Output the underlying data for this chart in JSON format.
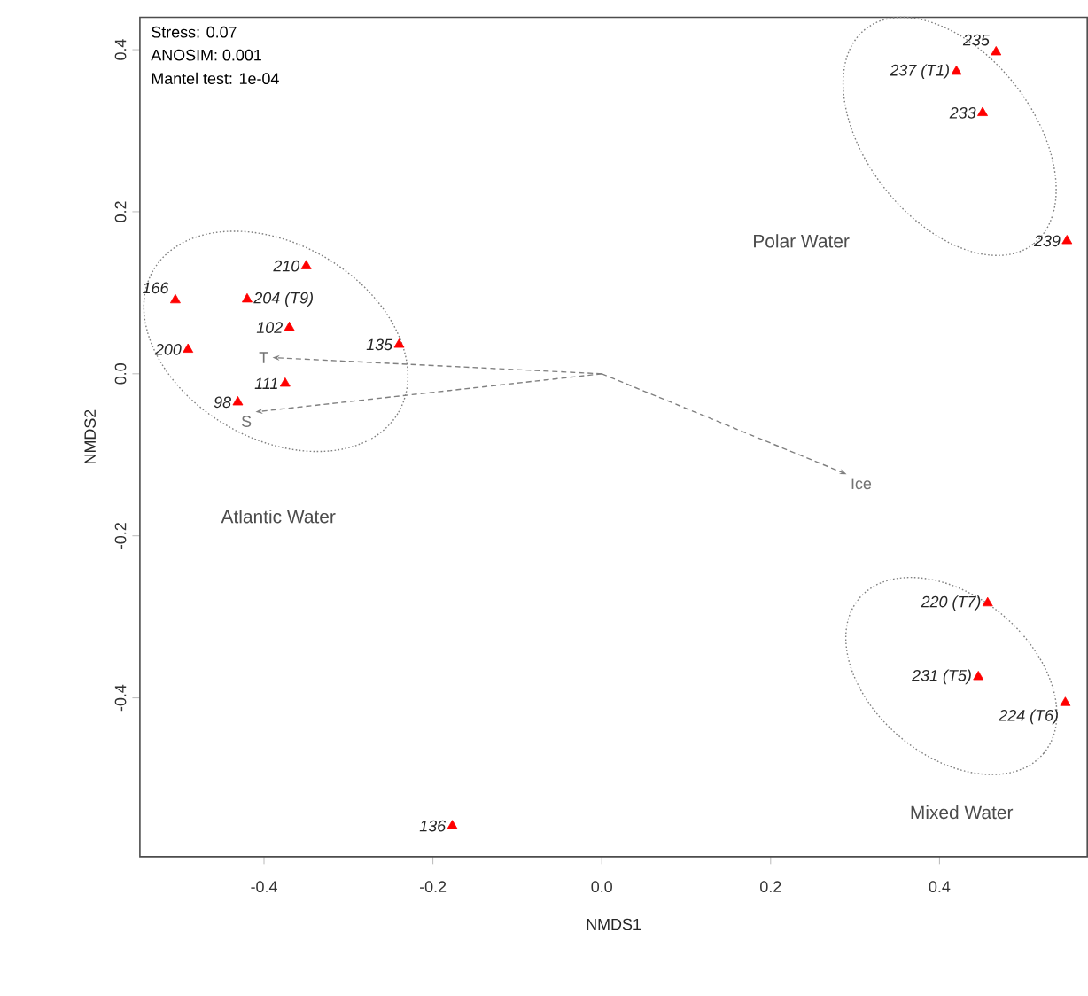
{
  "chart_data": {
    "type": "scatter",
    "xlabel": "NMDS1",
    "ylabel": "NMDS2",
    "xlim": [
      -0.547,
      0.575
    ],
    "ylim": [
      -0.596,
      0.44
    ],
    "xticks": [
      -0.4,
      -0.2,
      {
        "value": 0,
        "label": "0.0"
      },
      0.2,
      0.4
    ],
    "yticks": [
      -0.4,
      -0.2,
      {
        "value": 0,
        "label": "0.0"
      },
      0.2,
      0.4
    ],
    "series": [
      {
        "marker": "triangle",
        "color": "#ff0000",
        "x": [
          -0.431,
          -0.37,
          -0.375,
          -0.24,
          -0.177,
          -0.505,
          -0.49,
          -0.42,
          -0.35,
          0.457,
          0.549,
          0.446,
          0.451,
          0.467,
          0.42,
          0.551
        ],
        "values": [
          -0.035,
          0.057,
          -0.012,
          0.036,
          -0.558,
          0.091,
          0.03,
          0.092,
          0.133,
          -0.283,
          -0.406,
          -0.374,
          0.322,
          0.397,
          0.373,
          0.164
        ]
      }
    ],
    "annotations": [
      "Stress: 0.07",
      "ANOSIM: 0.001",
      "Mantel test: 1e-04",
      "Atlantic Water",
      "Polar Water",
      "Mixed Water",
      "T",
      "S",
      "Ice",
      {
        "text": "98",
        "x": -0.431,
        "y": -0.035
      },
      {
        "text": "102",
        "x": -0.37,
        "y": 0.057
      },
      {
        "text": "111",
        "x": -0.375,
        "y": -0.012
      },
      {
        "text": "135",
        "x": -0.24,
        "y": 0.036
      },
      {
        "text": "136",
        "x": -0.177,
        "y": -0.558
      },
      {
        "text": "166",
        "x": -0.505,
        "y": 0.091
      },
      {
        "text": "200",
        "x": -0.49,
        "y": 0.03
      },
      {
        "text": "204 (T9)",
        "x": -0.42,
        "y": 0.092
      },
      {
        "text": "210",
        "x": -0.35,
        "y": 0.133
      },
      {
        "text": "220 (T7)",
        "x": 0.457,
        "y": -0.283
      },
      {
        "text": "224 (T6)",
        "x": 0.549,
        "y": -0.406
      },
      {
        "text": "231 (T5)",
        "x": 0.446,
        "y": -0.374
      },
      {
        "text": "233",
        "x": 0.451,
        "y": 0.322
      },
      {
        "text": "235",
        "x": 0.467,
        "y": 0.397
      },
      {
        "text": "237 (T1)",
        "x": 0.42,
        "y": 0.373
      },
      {
        "text": "239",
        "x": 0.551,
        "y": 0.164
      }
    ]
  }
}
